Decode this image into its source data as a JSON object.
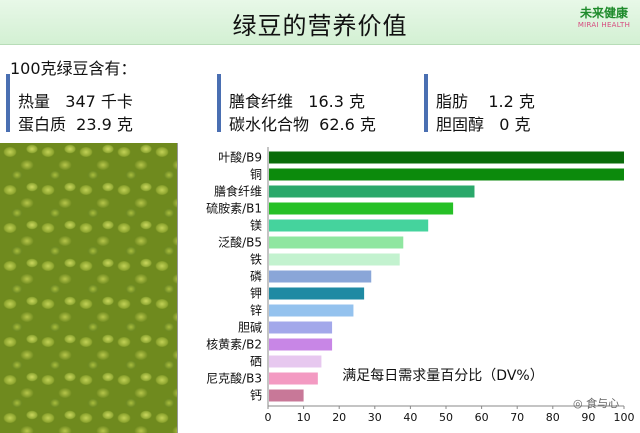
{
  "title": "绿豆的营养价值",
  "logo": {
    "cn": "未来健康",
    "en": "MIRAI HEALTH"
  },
  "subtitle": "100克绿豆含有：",
  "facts": [
    {
      "line1": "热量   347 千卡",
      "line2": "蛋白质  23.9 克"
    },
    {
      "line1": "膳食纤维   16.3 克",
      "line2": "碳水化合物  62.6 克"
    },
    {
      "line1": "脂肪    1.2 克",
      "line2": "胆固醇   0 克"
    }
  ],
  "watermark": "食与心",
  "chart_data": {
    "type": "bar",
    "orientation": "horizontal",
    "categories": [
      "叶酸/B9",
      "铜",
      "膳食纤维",
      "硫胺素/B1",
      "镁",
      "泛酸/B5",
      "铁",
      "磷",
      "钾",
      "锌",
      "胆碱",
      "核黄素/B2",
      "硒",
      "尼克酸/B3",
      "钙"
    ],
    "values": [
      100,
      100,
      58,
      52,
      45,
      38,
      37,
      29,
      27,
      24,
      18,
      18,
      15,
      14,
      10
    ],
    "colors": [
      "#0a6b0a",
      "#0c8a0c",
      "#2aa86a",
      "#26c026",
      "#45d39d",
      "#8fe6a0",
      "#c3f2cf",
      "#8aa6d8",
      "#1f8aa3",
      "#94c2ee",
      "#a3a8ea",
      "#c886e6",
      "#e7c8ef",
      "#f39ac2",
      "#c87898"
    ],
    "xlim": [
      0,
      100
    ],
    "xticks": [
      0,
      10,
      20,
      30,
      40,
      50,
      60,
      70,
      80,
      90,
      100
    ],
    "annotation": "满足每日需求量百分比（DV%）",
    "grid": false
  }
}
